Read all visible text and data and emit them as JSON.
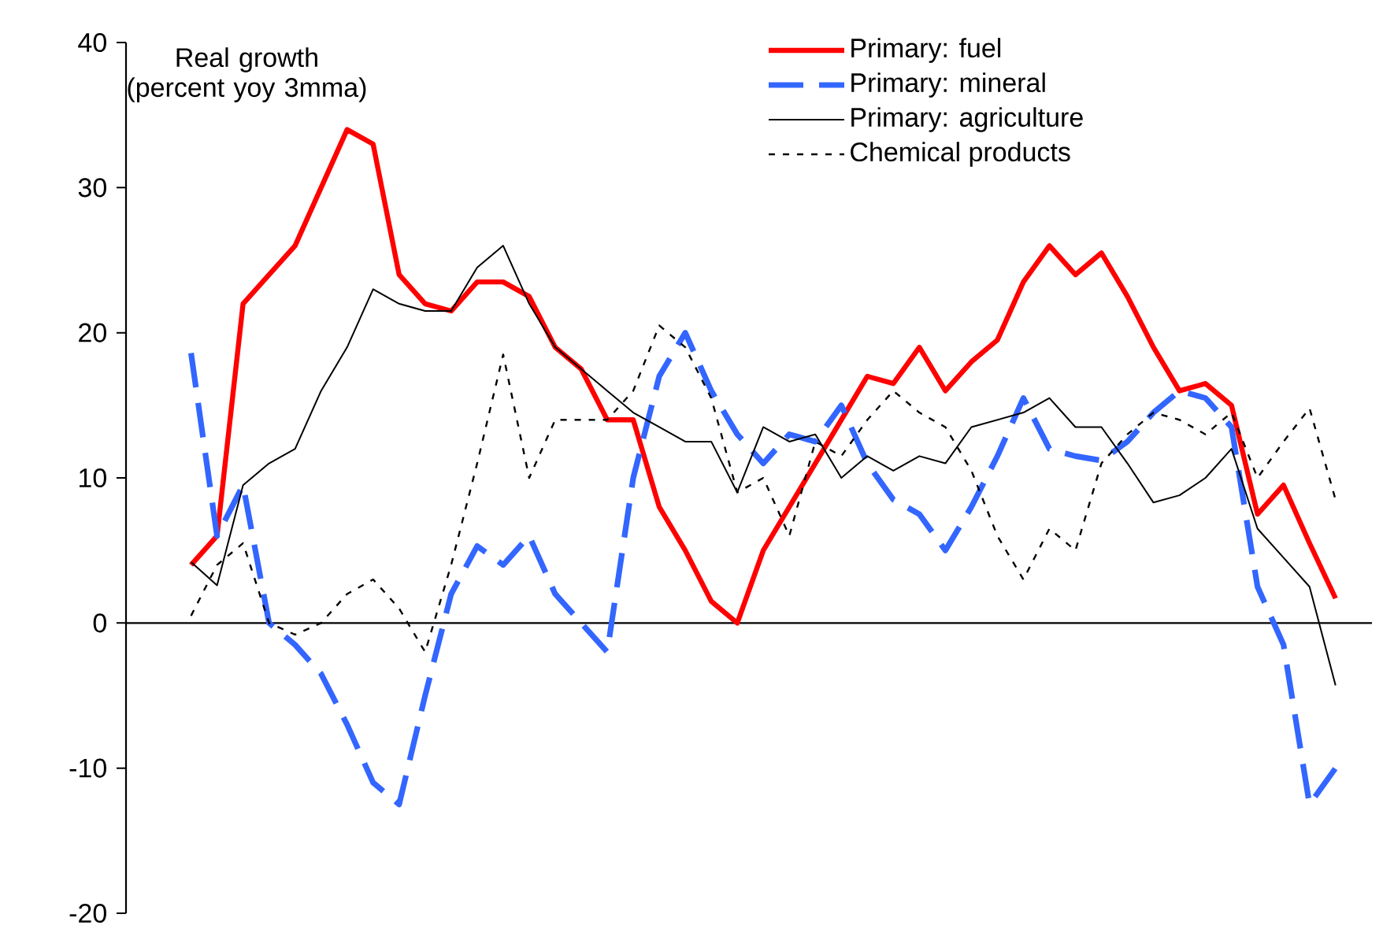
{
  "chart_data": {
    "type": "line",
    "ylabel": "Real growth (percent yoy 3mma)",
    "categories": [
      null,
      null,
      null,
      null,
      null,
      null,
      null,
      null,
      null,
      null,
      null,
      null,
      null,
      null,
      null,
      null,
      null,
      null,
      null,
      null,
      null,
      null,
      null,
      null,
      null,
      null,
      null,
      null,
      null,
      null,
      null,
      null,
      null,
      null,
      null,
      null,
      null,
      null,
      null,
      null,
      null,
      null,
      null,
      null,
      null
    ],
    "series": [
      {
        "name": "Primary: fuel",
        "color": "#ff0000",
        "line_style": "solid",
        "values": [
          4,
          6,
          22,
          24,
          26,
          30,
          34,
          33,
          24,
          22,
          21.5,
          23.5,
          23.5,
          22.5,
          19,
          17.5,
          14,
          14,
          8,
          5,
          1.5,
          0,
          5,
          8,
          11,
          14,
          17,
          16.5,
          19,
          16,
          18,
          19.5,
          23.5,
          26,
          24,
          25.5,
          22.5,
          19,
          16,
          16.5,
          15,
          7.5,
          9.5,
          5.5,
          1.7
        ]
      },
      {
        "name": "Primary: mineral",
        "color": "#3366ff",
        "line_style": "dashed",
        "values": [
          18.6,
          6,
          9.5,
          0,
          -1.5,
          -3.5,
          -7,
          -11,
          -12.5,
          -5,
          2,
          5.3,
          4,
          6,
          2,
          0,
          -2,
          10,
          17,
          20,
          16,
          13,
          11,
          13,
          12.5,
          15,
          11,
          8.5,
          7.5,
          5,
          8,
          11.5,
          15.5,
          12,
          11.5,
          11.2,
          12.5,
          14.5,
          16,
          15.5,
          13.5,
          2.5,
          -1.5,
          -12.5,
          -10
        ]
      },
      {
        "name": "Primary: agriculture",
        "color": "#000000",
        "line_style": "solid",
        "values": [
          4.2,
          2.6,
          9.5,
          11,
          12,
          16,
          19,
          23,
          22,
          21.5,
          21.5,
          24.5,
          26,
          22,
          19,
          17.5,
          16,
          14.5,
          13.5,
          12.5,
          12.5,
          9,
          13.5,
          12.5,
          13,
          10,
          11.5,
          10.5,
          11.5,
          11,
          13.5,
          14,
          14.5,
          15.5,
          13.5,
          13.5,
          11,
          8.3,
          8.8,
          10,
          12,
          6.5,
          4.5,
          2.5,
          -4.3
        ]
      },
      {
        "name": "Chemical products",
        "color": "#000000",
        "line_style": "dotted",
        "values": [
          0.5,
          4,
          5.5,
          0,
          -0.8,
          0,
          2,
          3,
          1,
          -2,
          4,
          11,
          18.5,
          10,
          14,
          14,
          14,
          16,
          20.5,
          19,
          15.5,
          9,
          10,
          6,
          12.5,
          11.5,
          14,
          16,
          14.5,
          13.5,
          10.5,
          6,
          3,
          6.5,
          5,
          11,
          13,
          14.5,
          14,
          13,
          14.5,
          10,
          12.5,
          14.8,
          8.5
        ]
      }
    ],
    "ylim": [
      -20,
      40
    ],
    "yticks": [
      -20,
      -10,
      0,
      10,
      20,
      30,
      40
    ],
    "legend": "top right",
    "marker": "none"
  }
}
